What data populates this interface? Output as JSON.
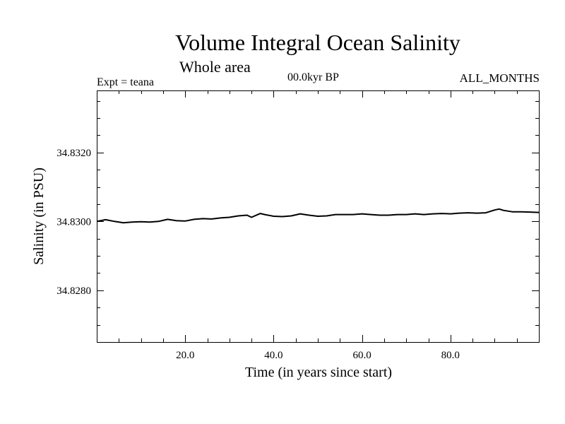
{
  "chart_data": {
    "type": "line",
    "title": "Volume Integral Ocean Salinity",
    "subtitle": "Whole area",
    "annotations": {
      "experiment": "Expt = teana",
      "period": "00.0kyr BP",
      "months": "ALL_MONTHS"
    },
    "xlabel": "Time (in years since start)",
    "ylabel": "Salinity (in PSU)",
    "xlim": [
      0,
      100
    ],
    "ylim": [
      34.8265,
      34.8338
    ],
    "xticks": [
      20,
      40,
      60,
      80
    ],
    "xtick_labels": [
      "20.0",
      "40.0",
      "60.0",
      "80.0"
    ],
    "yticks": [
      34.828,
      34.83,
      34.832
    ],
    "ytick_labels": [
      "34.8280",
      "34.8300",
      "34.8320"
    ],
    "grid": false,
    "series": [
      {
        "x": [
          0,
          2,
          4,
          6,
          8,
          10,
          12,
          14,
          16,
          18,
          20,
          22,
          24,
          26,
          28,
          30,
          32,
          34,
          35,
          37,
          38,
          40,
          42,
          44,
          46,
          48,
          50,
          52,
          54,
          56,
          58,
          60,
          62,
          64,
          66,
          68,
          70,
          72,
          74,
          76,
          78,
          80,
          82,
          84,
          86,
          88,
          90,
          91,
          92,
          94,
          96,
          98,
          100
        ],
        "values": [
          34.83,
          34.83005,
          34.83,
          34.82996,
          34.82998,
          34.82999,
          34.82998,
          34.83,
          34.83006,
          34.83002,
          34.83001,
          34.83006,
          34.83008,
          34.83007,
          34.8301,
          34.83012,
          34.83016,
          34.83018,
          34.83012,
          34.83023,
          34.8302,
          34.83015,
          34.83014,
          34.83016,
          34.83022,
          34.83018,
          34.83015,
          34.83016,
          34.8302,
          34.8302,
          34.8302,
          34.83022,
          34.8302,
          34.83018,
          34.83018,
          34.8302,
          34.8302,
          34.83022,
          34.8302,
          34.83022,
          34.83023,
          34.83022,
          34.83024,
          34.83025,
          34.83024,
          34.83025,
          34.83033,
          34.83036,
          34.83032,
          34.83028,
          34.83028,
          34.83027,
          34.83026
        ]
      }
    ]
  }
}
